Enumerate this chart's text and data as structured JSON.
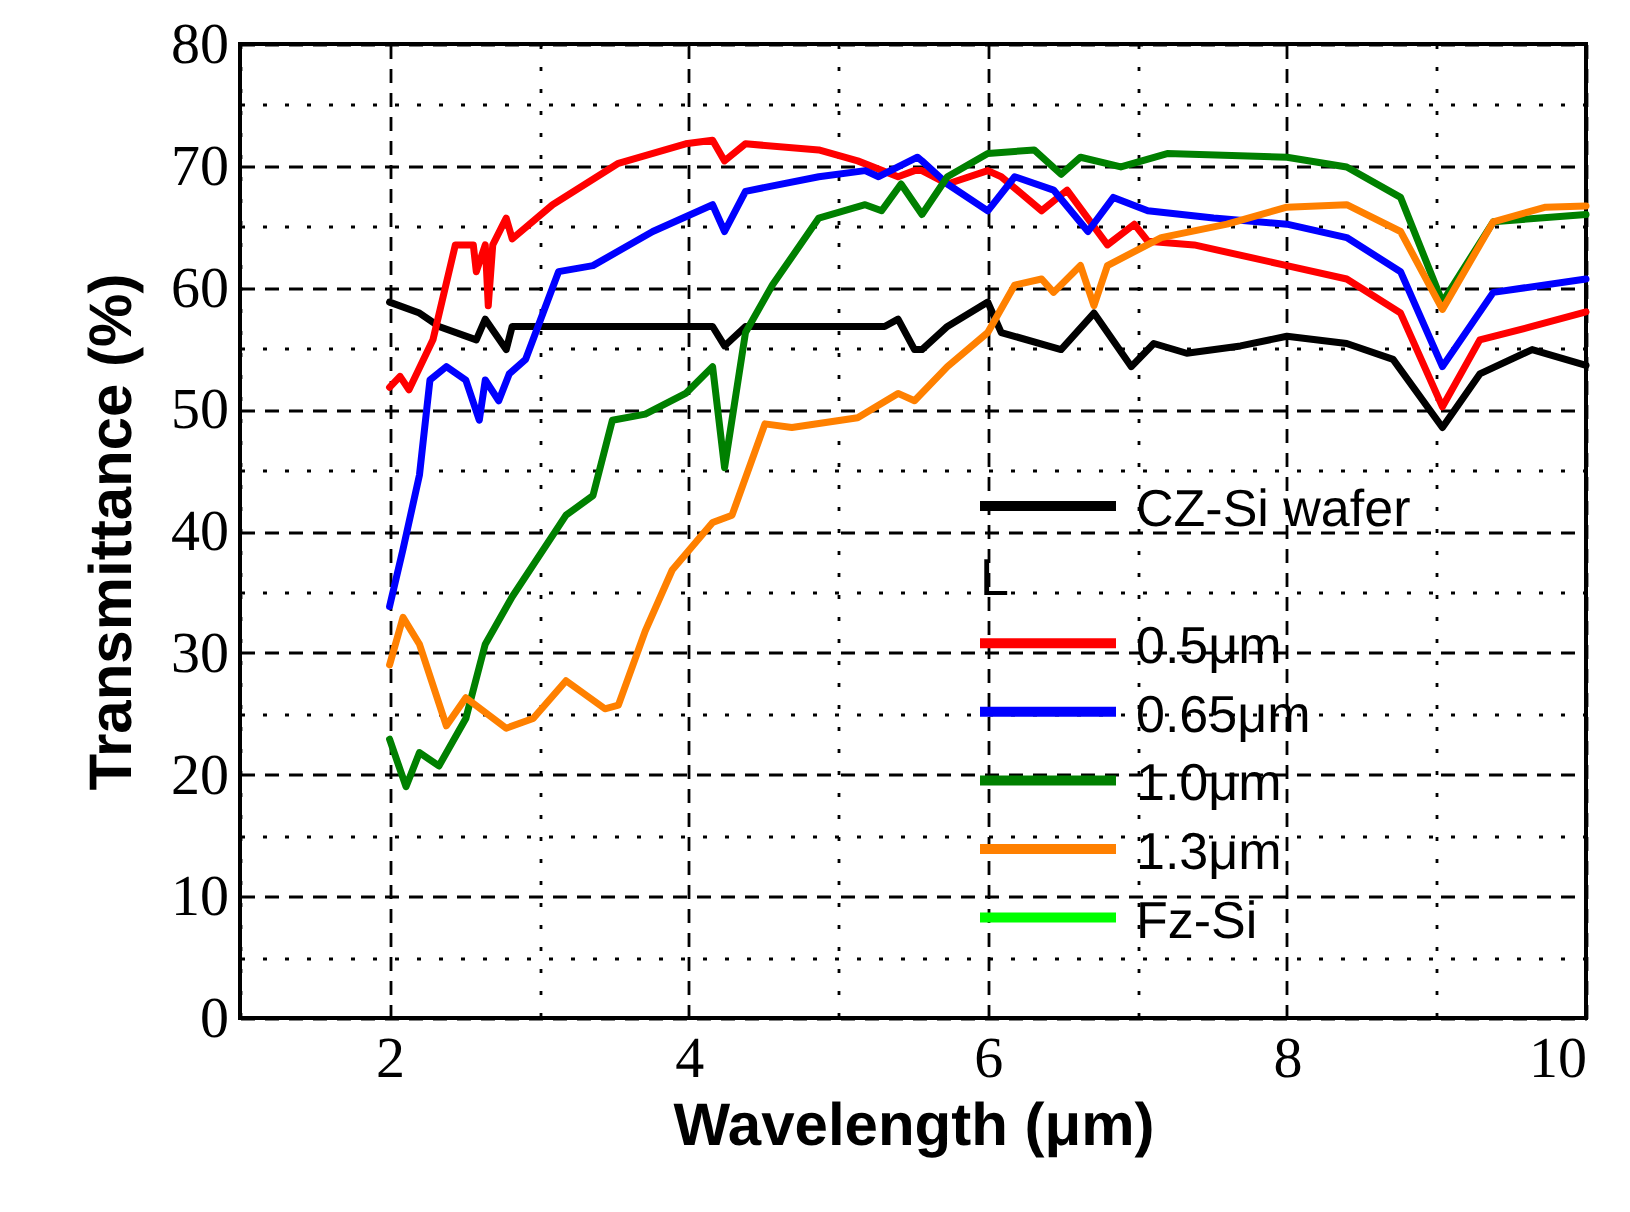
{
  "chart_data": {
    "type": "line",
    "xlabel": "Wavelength (μm)",
    "ylabel": "Transmittance (%)",
    "xlim": [
      1,
      10
    ],
    "ylim": [
      0,
      80
    ],
    "xticks": [
      {
        "value": 1,
        "label": null
      },
      2,
      {
        "value": 3,
        "label": null
      },
      4,
      {
        "value": 5,
        "label": null
      },
      6,
      {
        "value": 7,
        "label": null
      },
      8,
      {
        "value": 9,
        "label": null
      },
      10
    ],
    "yticks": [
      0,
      {
        "value": 5,
        "label": null
      },
      10,
      {
        "value": 15,
        "label": null
      },
      20,
      {
        "value": 25,
        "label": null
      },
      30,
      {
        "value": 35,
        "label": null
      },
      40,
      {
        "value": 45,
        "label": null
      },
      50,
      {
        "value": 55,
        "label": null
      },
      60,
      {
        "value": 65,
        "label": null
      },
      70,
      {
        "value": 75,
        "label": null
      },
      80
    ],
    "grid": true,
    "legend": "bottom right",
    "line_style": "solid",
    "annotations": [
      "L"
    ],
    "series": [
      {
        "name": "CZ-Si wafer",
        "color": "#000000",
        "x": [
          2.0,
          2.2,
          2.33,
          2.58,
          2.64,
          2.78,
          2.82,
          3.0,
          4.16,
          4.24,
          4.38,
          5.31,
          5.4,
          5.51,
          5.56,
          5.73,
          6.0,
          6.09,
          6.49,
          6.71,
          6.96,
          7.11,
          7.33,
          7.69,
          8.0,
          8.4,
          8.71,
          9.04,
          9.29,
          9.64,
          10.0
        ],
        "values": [
          58.8,
          57.9,
          56.8,
          55.7,
          57.4,
          54.9,
          56.8,
          56.8,
          56.8,
          55.2,
          56.8,
          56.8,
          57.4,
          54.9,
          54.9,
          56.8,
          58.8,
          56.3,
          54.9,
          57.9,
          53.5,
          55.4,
          54.6,
          55.2,
          56.0,
          55.4,
          54.1,
          48.5,
          52.9,
          54.9,
          53.6
        ]
      },
      {
        "name": "0.5μm",
        "color": "#ff0000",
        "x": [
          2.0,
          2.07,
          2.13,
          2.29,
          2.44,
          2.56,
          2.58,
          2.64,
          2.66,
          2.69,
          2.78,
          2.82,
          3.09,
          3.53,
          3.98,
          4.16,
          4.24,
          4.38,
          4.87,
          5.13,
          5.4,
          5.51,
          5.56,
          5.73,
          6.0,
          6.09,
          6.36,
          6.53,
          6.8,
          6.98,
          7.07,
          7.38,
          8.0,
          8.4,
          8.76,
          9.04,
          9.29,
          9.64,
          10.0
        ],
        "values": [
          51.8,
          52.7,
          51.6,
          55.7,
          63.5,
          63.5,
          61.3,
          63.5,
          58.5,
          63.5,
          65.7,
          64.0,
          66.8,
          70.2,
          71.8,
          72.1,
          70.4,
          71.8,
          71.3,
          70.4,
          69.1,
          69.6,
          69.6,
          68.5,
          69.6,
          69.1,
          66.3,
          68.0,
          63.5,
          65.2,
          63.8,
          63.5,
          61.8,
          60.7,
          57.9,
          50.2,
          55.7,
          56.8,
          58.0
        ]
      },
      {
        "name": "0.65μm",
        "color": "#0000ff",
        "x": [
          2.0,
          2.09,
          2.2,
          2.27,
          2.38,
          2.51,
          2.6,
          2.64,
          2.73,
          2.8,
          2.91,
          3.13,
          3.36,
          3.76,
          4.16,
          4.24,
          4.38,
          4.87,
          5.18,
          5.27,
          5.53,
          5.56,
          5.73,
          6.0,
          6.18,
          6.44,
          6.67,
          6.84,
          7.07,
          7.51,
          8.0,
          8.4,
          8.76,
          9.04,
          9.38,
          10.0
        ],
        "values": [
          33.8,
          38.5,
          44.6,
          52.4,
          53.5,
          52.4,
          49.1,
          52.4,
          50.7,
          52.9,
          54.1,
          61.3,
          61.8,
          64.6,
          66.8,
          64.6,
          67.9,
          69.1,
          69.6,
          69.1,
          70.7,
          70.4,
          68.5,
          66.3,
          69.1,
          68.0,
          64.6,
          67.4,
          66.3,
          65.7,
          65.2,
          64.1,
          61.3,
          53.5,
          59.6,
          60.7
        ]
      },
      {
        "name": "1.0μm",
        "color": "#008000",
        "x": [
          2.0,
          2.11,
          2.2,
          2.33,
          2.51,
          2.64,
          2.82,
          3.18,
          3.36,
          3.49,
          3.71,
          3.98,
          4.16,
          4.24,
          4.38,
          4.56,
          4.87,
          5.18,
          5.29,
          5.42,
          5.56,
          5.73,
          6.0,
          6.31,
          6.49,
          6.62,
          6.89,
          7.2,
          8.0,
          8.4,
          8.76,
          9.04,
          9.38,
          10.0
        ],
        "values": [
          22.9,
          19.0,
          21.8,
          20.7,
          24.6,
          30.7,
          34.6,
          41.3,
          42.9,
          49.1,
          49.6,
          51.3,
          53.5,
          45.2,
          56.3,
          60.2,
          65.7,
          66.8,
          66.3,
          68.5,
          66.0,
          69.1,
          71.0,
          71.3,
          69.3,
          70.7,
          69.9,
          71.0,
          70.7,
          69.9,
          67.4,
          58.8,
          65.4,
          66.0
        ]
      },
      {
        "name": "1.3μm",
        "color": "#ff8000",
        "x": [
          2.0,
          2.09,
          2.2,
          2.38,
          2.51,
          2.78,
          2.96,
          3.18,
          3.44,
          3.53,
          3.71,
          3.89,
          4.16,
          4.29,
          4.51,
          4.69,
          5.13,
          5.4,
          5.51,
          5.73,
          6.0,
          6.18,
          6.36,
          6.44,
          6.62,
          6.71,
          6.8,
          7.16,
          7.6,
          8.0,
          8.4,
          8.76,
          9.04,
          9.38,
          9.73,
          10.0
        ],
        "values": [
          29.0,
          32.9,
          30.7,
          24.0,
          26.3,
          23.8,
          24.6,
          27.7,
          25.4,
          25.7,
          31.8,
          36.8,
          40.7,
          41.3,
          48.8,
          48.5,
          49.3,
          51.3,
          50.7,
          53.5,
          56.3,
          60.2,
          60.7,
          59.6,
          61.8,
          58.5,
          61.8,
          64.1,
          65.2,
          66.6,
          66.8,
          64.6,
          58.2,
          65.4,
          66.6,
          66.7
        ]
      },
      {
        "name": "Fz-Si",
        "color": "#00ff00"
      }
    ]
  }
}
